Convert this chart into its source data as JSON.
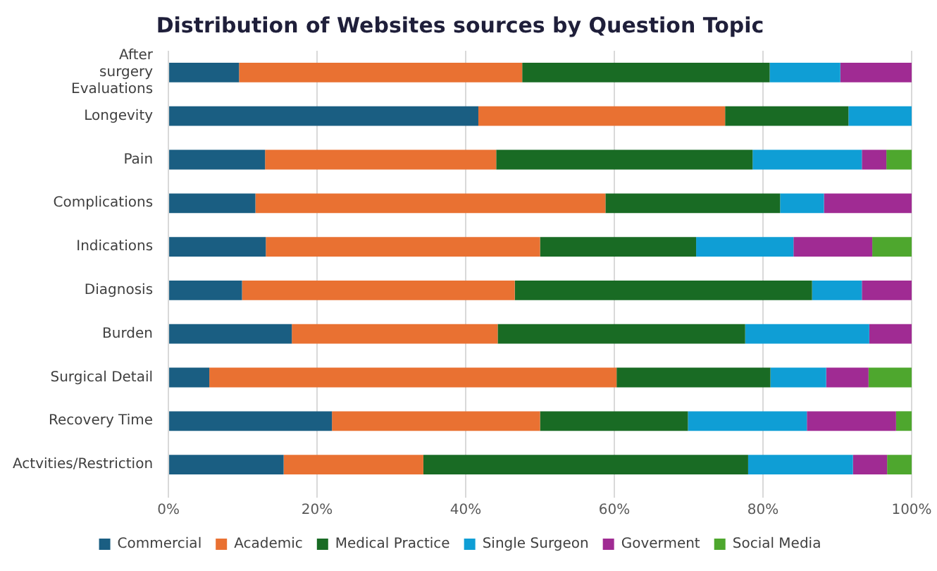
{
  "chart_data": {
    "type": "bar",
    "orientation": "horizontal",
    "stacked": true,
    "title": "Distribution of Websites sources by Question Topic",
    "categories": [
      "After surgery Evaluations",
      "Longevity",
      "Pain",
      "Complications",
      "Indications",
      "Diagnosis",
      "Burden",
      "Surgical Detail",
      "Recovery Time",
      "Actvities/Restriction"
    ],
    "series": [
      {
        "name": "Commercial",
        "color": "#1a5e82",
        "values": [
          9.5,
          41.7,
          13.0,
          11.7,
          13.1,
          9.9,
          16.6,
          5.5,
          22.0,
          15.5
        ]
      },
      {
        "name": "Academic",
        "color": "#e97132",
        "values": [
          38.1,
          33.2,
          31.1,
          47.1,
          36.9,
          36.7,
          27.7,
          54.8,
          28.0,
          18.8
        ]
      },
      {
        "name": "Medical Practice",
        "color": "#196b24",
        "values": [
          33.3,
          16.6,
          34.5,
          23.5,
          21.0,
          40.0,
          33.3,
          20.7,
          19.9,
          43.7
        ]
      },
      {
        "name": "Single Surgeon",
        "color": "#0f9ed5",
        "values": [
          9.5,
          8.5,
          14.7,
          5.9,
          13.1,
          6.7,
          16.7,
          7.5,
          16.0,
          14.1
        ]
      },
      {
        "name": "Goverment",
        "color": "#a02b93",
        "values": [
          9.6,
          0,
          3.3,
          11.8,
          10.6,
          6.7,
          5.7,
          5.7,
          12.0,
          4.6
        ]
      },
      {
        "name": "Social Media",
        "color": "#4ea72e",
        "values": [
          0,
          0,
          3.4,
          0,
          5.3,
          0,
          0,
          5.8,
          2.1,
          3.3
        ]
      }
    ],
    "xlim": [
      0,
      100
    ],
    "xticks": [
      {
        "value": 0,
        "label": "0%"
      },
      {
        "value": 20,
        "label": "20%"
      },
      {
        "value": 40,
        "label": "40%"
      },
      {
        "value": 60,
        "label": "60%"
      },
      {
        "value": 80,
        "label": "80%"
      },
      {
        "value": 100,
        "label": "100%"
      }
    ],
    "grid": "x",
    "legend": "bottom"
  }
}
